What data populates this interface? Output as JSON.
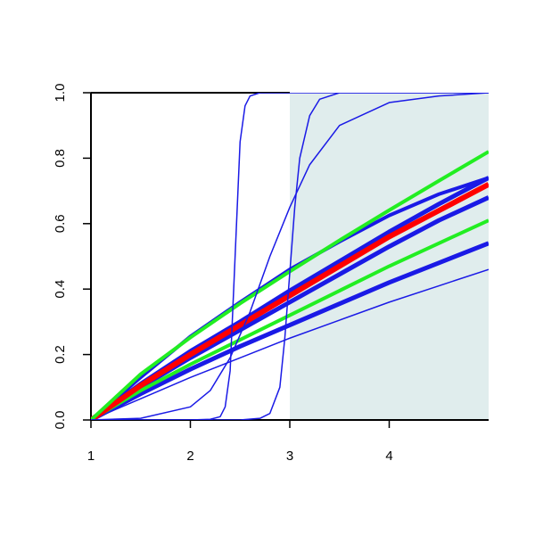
{
  "chart_data": {
    "type": "line",
    "xlim": [
      1,
      5
    ],
    "ylim": [
      0,
      1
    ],
    "xticks": [
      1,
      2,
      3,
      4
    ],
    "yticks": [
      {
        "value": 0,
        "label": "0.0"
      },
      0.2,
      0.4,
      0.6,
      0.8,
      {
        "value": 1,
        "label": "1.0"
      }
    ],
    "shade": {
      "xlim": [
        3,
        5
      ],
      "color": "#e0eded"
    },
    "x": [
      1,
      1.5,
      2,
      2.5,
      3,
      3.5,
      4,
      4.5,
      5
    ],
    "series": [
      {
        "color": "#1a1ae6",
        "width": 4,
        "values": [
          0,
          0.13,
          0.255,
          0.36,
          0.46,
          0.545,
          0.625,
          0.69,
          0.74
        ]
      },
      {
        "color": "#1a1ae6",
        "width": 5,
        "values": [
          0,
          0.1,
          0.19,
          0.275,
          0.36,
          0.445,
          0.53,
          0.61,
          0.68
        ]
      },
      {
        "color": "#1a1ae6",
        "width": 5,
        "values": [
          0,
          0.11,
          0.21,
          0.3,
          0.395,
          0.485,
          0.575,
          0.66,
          0.74
        ]
      },
      {
        "color": "#1a1ae6",
        "width": 5,
        "values": [
          0,
          0.08,
          0.155,
          0.225,
          0.29,
          0.355,
          0.42,
          0.48,
          0.54
        ]
      },
      {
        "color": "#1a1ae6",
        "width": 1.5,
        "values": [
          0,
          0.065,
          0.13,
          0.19,
          0.25,
          0.305,
          0.36,
          0.41,
          0.46
        ]
      },
      {
        "color": "#22ee22",
        "width": 4,
        "values": [
          0,
          0.09,
          0.17,
          0.245,
          0.32,
          0.395,
          0.47,
          0.54,
          0.61
        ]
      },
      {
        "color": "#ff0000",
        "width": 6,
        "values": [
          0,
          0.105,
          0.2,
          0.29,
          0.38,
          0.47,
          0.56,
          0.64,
          0.72
        ]
      },
      {
        "color": "#22ee22",
        "width": 4,
        "values": [
          0,
          0.14,
          0.252,
          0.356,
          0.454,
          0.549,
          0.641,
          0.731,
          0.82
        ]
      },
      {
        "color": "#1a1ae6",
        "width": 1.5,
        "x": [
          1,
          2,
          2.2,
          2.3,
          2.35,
          2.4,
          2.45,
          2.5,
          2.55,
          2.6,
          2.7,
          3,
          5
        ],
        "values": [
          0,
          0,
          0.002,
          0.01,
          0.04,
          0.15,
          0.5,
          0.85,
          0.96,
          0.99,
          1,
          1,
          1
        ]
      },
      {
        "color": "#1a1ae6",
        "width": 1.5,
        "x": [
          1,
          2.5,
          2.7,
          2.8,
          2.9,
          2.95,
          3,
          3.05,
          3.1,
          3.2,
          3.3,
          3.5,
          5
        ],
        "values": [
          0,
          0,
          0.005,
          0.02,
          0.1,
          0.25,
          0.45,
          0.65,
          0.8,
          0.93,
          0.98,
          1,
          1
        ]
      },
      {
        "color": "#1a1ae6",
        "width": 1.5,
        "x": [
          1,
          1.5,
          2,
          2.2,
          2.4,
          2.6,
          2.8,
          3,
          3.2,
          3.5,
          4,
          4.5,
          5
        ],
        "values": [
          0,
          0.005,
          0.04,
          0.09,
          0.19,
          0.33,
          0.5,
          0.65,
          0.78,
          0.9,
          0.97,
          0.99,
          1
        ]
      }
    ]
  }
}
